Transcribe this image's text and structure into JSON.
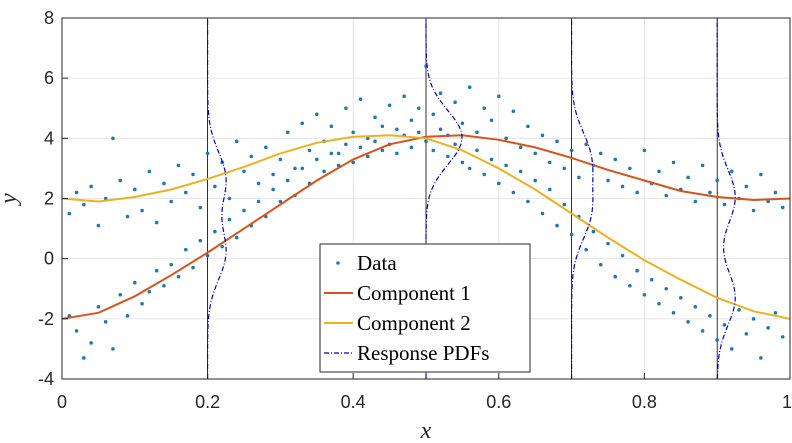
{
  "chart_data": {
    "type": "scatter",
    "xlabel": "x",
    "ylabel": "y",
    "xlim": [
      0,
      1
    ],
    "ylim": [
      -4,
      8
    ],
    "xticks": [
      0,
      0.2,
      0.4,
      0.6,
      0.8,
      1
    ],
    "xtick_labels": [
      "0",
      "0.2",
      "0.4",
      "0.6",
      "0.8",
      "1"
    ],
    "yticks": [
      -4,
      -2,
      0,
      2,
      4,
      6,
      8
    ],
    "ytick_labels": [
      "-4",
      "-2",
      "0",
      "2",
      "4",
      "6",
      "8"
    ],
    "grid": true,
    "legend_position": "bottom-center",
    "colors": {
      "data": "#1f77b4",
      "component1": "#d95319",
      "component2": "#edb120",
      "pdf": "#0000cc",
      "grid": "#e6e6e6",
      "axis": "#262626"
    },
    "legend": [
      {
        "key": "data",
        "label": "Data"
      },
      {
        "key": "component1",
        "label": "Component 1"
      },
      {
        "key": "component2",
        "label": "Component 2"
      },
      {
        "key": "pdf",
        "label": "Response PDFs"
      }
    ],
    "series": [
      {
        "name": "Component 1",
        "x": [
          0,
          0.05,
          0.1,
          0.15,
          0.2,
          0.25,
          0.3,
          0.35,
          0.4,
          0.45,
          0.5,
          0.55,
          0.6,
          0.65,
          0.7,
          0.75,
          0.8,
          0.85,
          0.9,
          0.95,
          1
        ],
        "y": [
          -2.0,
          -1.8,
          -1.25,
          -0.55,
          0.2,
          1.0,
          1.8,
          2.6,
          3.3,
          3.8,
          4.05,
          4.1,
          3.95,
          3.7,
          3.35,
          2.95,
          2.6,
          2.25,
          2.05,
          1.95,
          2.0
        ]
      },
      {
        "name": "Component 2",
        "x": [
          0,
          0.05,
          0.1,
          0.15,
          0.2,
          0.25,
          0.3,
          0.35,
          0.4,
          0.45,
          0.5,
          0.55,
          0.6,
          0.65,
          0.7,
          0.75,
          0.8,
          0.85,
          0.9,
          0.95,
          1
        ],
        "y": [
          2.0,
          1.9,
          2.05,
          2.3,
          2.65,
          3.05,
          3.5,
          3.85,
          4.05,
          4.1,
          4.0,
          3.6,
          3.0,
          2.3,
          1.5,
          0.7,
          -0.05,
          -0.7,
          -1.3,
          -1.75,
          -2.0
        ]
      }
    ],
    "response_pdfs": [
      {
        "x": 0.2,
        "component1_mean": 0.2,
        "component2_mean": 2.65
      },
      {
        "x": 0.5,
        "component1_mean": 4.05,
        "component2_mean": 4.0
      },
      {
        "x": 0.7,
        "component1_mean": 3.35,
        "component2_mean": 1.5
      },
      {
        "x": 0.9,
        "component1_mean": 2.05,
        "component2_mean": -1.3
      }
    ],
    "data_points": [
      [
        0.01,
        1.5
      ],
      [
        0.01,
        -1.9
      ],
      [
        0.02,
        2.2
      ],
      [
        0.02,
        -2.4
      ],
      [
        0.03,
        1.8
      ],
      [
        0.03,
        -3.3
      ],
      [
        0.04,
        2.4
      ],
      [
        0.04,
        -2.8
      ],
      [
        0.05,
        1.1
      ],
      [
        0.05,
        -1.6
      ],
      [
        0.06,
        2.0
      ],
      [
        0.06,
        -2.1
      ],
      [
        0.07,
        4.0
      ],
      [
        0.07,
        -3.0
      ],
      [
        0.08,
        2.6
      ],
      [
        0.08,
        -1.2
      ],
      [
        0.09,
        1.4
      ],
      [
        0.09,
        -1.9
      ],
      [
        0.1,
        2.3
      ],
      [
        0.1,
        -0.8
      ],
      [
        0.11,
        1.6
      ],
      [
        0.11,
        -1.5
      ],
      [
        0.12,
        2.9
      ],
      [
        0.12,
        -1.1
      ],
      [
        0.13,
        1.2
      ],
      [
        0.13,
        -0.4
      ],
      [
        0.14,
        2.5
      ],
      [
        0.14,
        -0.9
      ],
      [
        0.15,
        1.9
      ],
      [
        0.15,
        -0.2
      ],
      [
        0.16,
        3.1
      ],
      [
        0.16,
        -0.6
      ],
      [
        0.17,
        2.2
      ],
      [
        0.17,
        0.3
      ],
      [
        0.18,
        2.8
      ],
      [
        0.18,
        -0.3
      ],
      [
        0.19,
        1.7
      ],
      [
        0.19,
        0.6
      ],
      [
        0.2,
        3.5
      ],
      [
        0.2,
        0.1
      ],
      [
        0.21,
        2.4
      ],
      [
        0.21,
        0.9
      ],
      [
        0.22,
        3.2
      ],
      [
        0.22,
        0.4
      ],
      [
        0.23,
        2.0
      ],
      [
        0.23,
        1.3
      ],
      [
        0.24,
        3.9
      ],
      [
        0.24,
        0.7
      ],
      [
        0.25,
        2.9
      ],
      [
        0.25,
        1.6
      ],
      [
        0.26,
        3.4
      ],
      [
        0.26,
        1.1
      ],
      [
        0.27,
        2.5
      ],
      [
        0.27,
        1.9
      ],
      [
        0.28,
        3.7
      ],
      [
        0.28,
        1.4
      ],
      [
        0.29,
        2.8
      ],
      [
        0.29,
        2.3
      ],
      [
        0.3,
        3.3
      ],
      [
        0.3,
        1.9
      ],
      [
        0.31,
        4.2
      ],
      [
        0.31,
        2.6
      ],
      [
        0.32,
        3.0
      ],
      [
        0.32,
        2.1
      ],
      [
        0.33,
        4.5
      ],
      [
        0.33,
        3.0
      ],
      [
        0.34,
        3.6
      ],
      [
        0.34,
        2.5
      ],
      [
        0.35,
        4.8
      ],
      [
        0.35,
        3.3
      ],
      [
        0.36,
        3.9
      ],
      [
        0.36,
        2.9
      ],
      [
        0.37,
        4.4
      ],
      [
        0.37,
        3.5
      ],
      [
        0.38,
        3.5
      ],
      [
        0.38,
        3.1
      ],
      [
        0.39,
        5.0
      ],
      [
        0.39,
        3.8
      ],
      [
        0.4,
        4.2
      ],
      [
        0.4,
        3.2
      ],
      [
        0.41,
        5.3
      ],
      [
        0.41,
        3.7
      ],
      [
        0.42,
        4.0
      ],
      [
        0.42,
        3.4
      ],
      [
        0.43,
        4.7
      ],
      [
        0.43,
        3.9
      ],
      [
        0.44,
        3.6
      ],
      [
        0.44,
        4.4
      ],
      [
        0.45,
        5.1
      ],
      [
        0.45,
        3.8
      ],
      [
        0.46,
        4.3
      ],
      [
        0.46,
        3.5
      ],
      [
        0.47,
        5.4
      ],
      [
        0.47,
        4.1
      ],
      [
        0.48,
        4.6
      ],
      [
        0.48,
        3.7
      ],
      [
        0.49,
        5.0
      ],
      [
        0.49,
        4.2
      ],
      [
        0.5,
        6.4
      ],
      [
        0.5,
        3.9
      ],
      [
        0.51,
        4.8
      ],
      [
        0.51,
        3.6
      ],
      [
        0.52,
        5.5
      ],
      [
        0.52,
        4.3
      ],
      [
        0.53,
        4.1
      ],
      [
        0.53,
        3.4
      ],
      [
        0.54,
        5.2
      ],
      [
        0.54,
        3.8
      ],
      [
        0.55,
        4.5
      ],
      [
        0.55,
        3.2
      ],
      [
        0.56,
        5.7
      ],
      [
        0.56,
        3.0
      ],
      [
        0.57,
        4.2
      ],
      [
        0.57,
        3.6
      ],
      [
        0.58,
        5.0
      ],
      [
        0.58,
        2.8
      ],
      [
        0.59,
        4.6
      ],
      [
        0.59,
        3.3
      ],
      [
        0.6,
        5.4
      ],
      [
        0.6,
        2.5
      ],
      [
        0.61,
        4.0
      ],
      [
        0.61,
        3.1
      ],
      [
        0.62,
        4.9
      ],
      [
        0.62,
        2.2
      ],
      [
        0.63,
        3.7
      ],
      [
        0.63,
        2.9
      ],
      [
        0.64,
        4.4
      ],
      [
        0.64,
        1.9
      ],
      [
        0.65,
        3.5
      ],
      [
        0.65,
        2.6
      ],
      [
        0.66,
        4.1
      ],
      [
        0.66,
        1.5
      ],
      [
        0.67,
        3.2
      ],
      [
        0.67,
        2.3
      ],
      [
        0.68,
        3.9
      ],
      [
        0.68,
        1.1
      ],
      [
        0.69,
        3.0
      ],
      [
        0.69,
        1.8
      ],
      [
        0.7,
        3.6
      ],
      [
        0.7,
        0.8
      ],
      [
        0.71,
        2.7
      ],
      [
        0.71,
        1.4
      ],
      [
        0.72,
        3.8
      ],
      [
        0.72,
        0.3
      ],
      [
        0.73,
        3.1
      ],
      [
        0.73,
        0.9
      ],
      [
        0.74,
        3.5
      ],
      [
        0.74,
        -0.2
      ],
      [
        0.75,
        2.6
      ],
      [
        0.75,
        0.5
      ],
      [
        0.76,
        3.3
      ],
      [
        0.76,
        -0.6
      ],
      [
        0.77,
        2.4
      ],
      [
        0.77,
        0.1
      ],
      [
        0.78,
        3.0
      ],
      [
        0.78,
        -0.9
      ],
      [
        0.79,
        2.2
      ],
      [
        0.79,
        -0.4
      ],
      [
        0.8,
        3.6
      ],
      [
        0.8,
        -1.2
      ],
      [
        0.81,
        2.5
      ],
      [
        0.81,
        -0.7
      ],
      [
        0.82,
        2.9
      ],
      [
        0.82,
        -1.5
      ],
      [
        0.83,
        2.1
      ],
      [
        0.83,
        -1.0
      ],
      [
        0.84,
        3.2
      ],
      [
        0.84,
        -1.8
      ],
      [
        0.85,
        2.3
      ],
      [
        0.85,
        -1.3
      ],
      [
        0.86,
        2.7
      ],
      [
        0.86,
        -2.1
      ],
      [
        0.87,
        1.9
      ],
      [
        0.87,
        -1.6
      ],
      [
        0.88,
        3.1
      ],
      [
        0.88,
        -2.4
      ],
      [
        0.89,
        2.2
      ],
      [
        0.89,
        -1.9
      ],
      [
        0.9,
        2.6
      ],
      [
        0.9,
        -2.7
      ],
      [
        0.91,
        1.8
      ],
      [
        0.91,
        -2.2
      ],
      [
        0.92,
        2.9
      ],
      [
        0.92,
        -3.0
      ],
      [
        0.93,
        2.0
      ],
      [
        0.93,
        -1.7
      ],
      [
        0.94,
        2.4
      ],
      [
        0.94,
        -2.5
      ],
      [
        0.95,
        1.6
      ],
      [
        0.95,
        -2.0
      ],
      [
        0.96,
        2.8
      ],
      [
        0.96,
        -3.3
      ],
      [
        0.97,
        1.9
      ],
      [
        0.97,
        -2.3
      ],
      [
        0.98,
        2.2
      ],
      [
        0.98,
        -1.8
      ],
      [
        0.99,
        1.7
      ],
      [
        0.99,
        -2.6
      ]
    ]
  }
}
